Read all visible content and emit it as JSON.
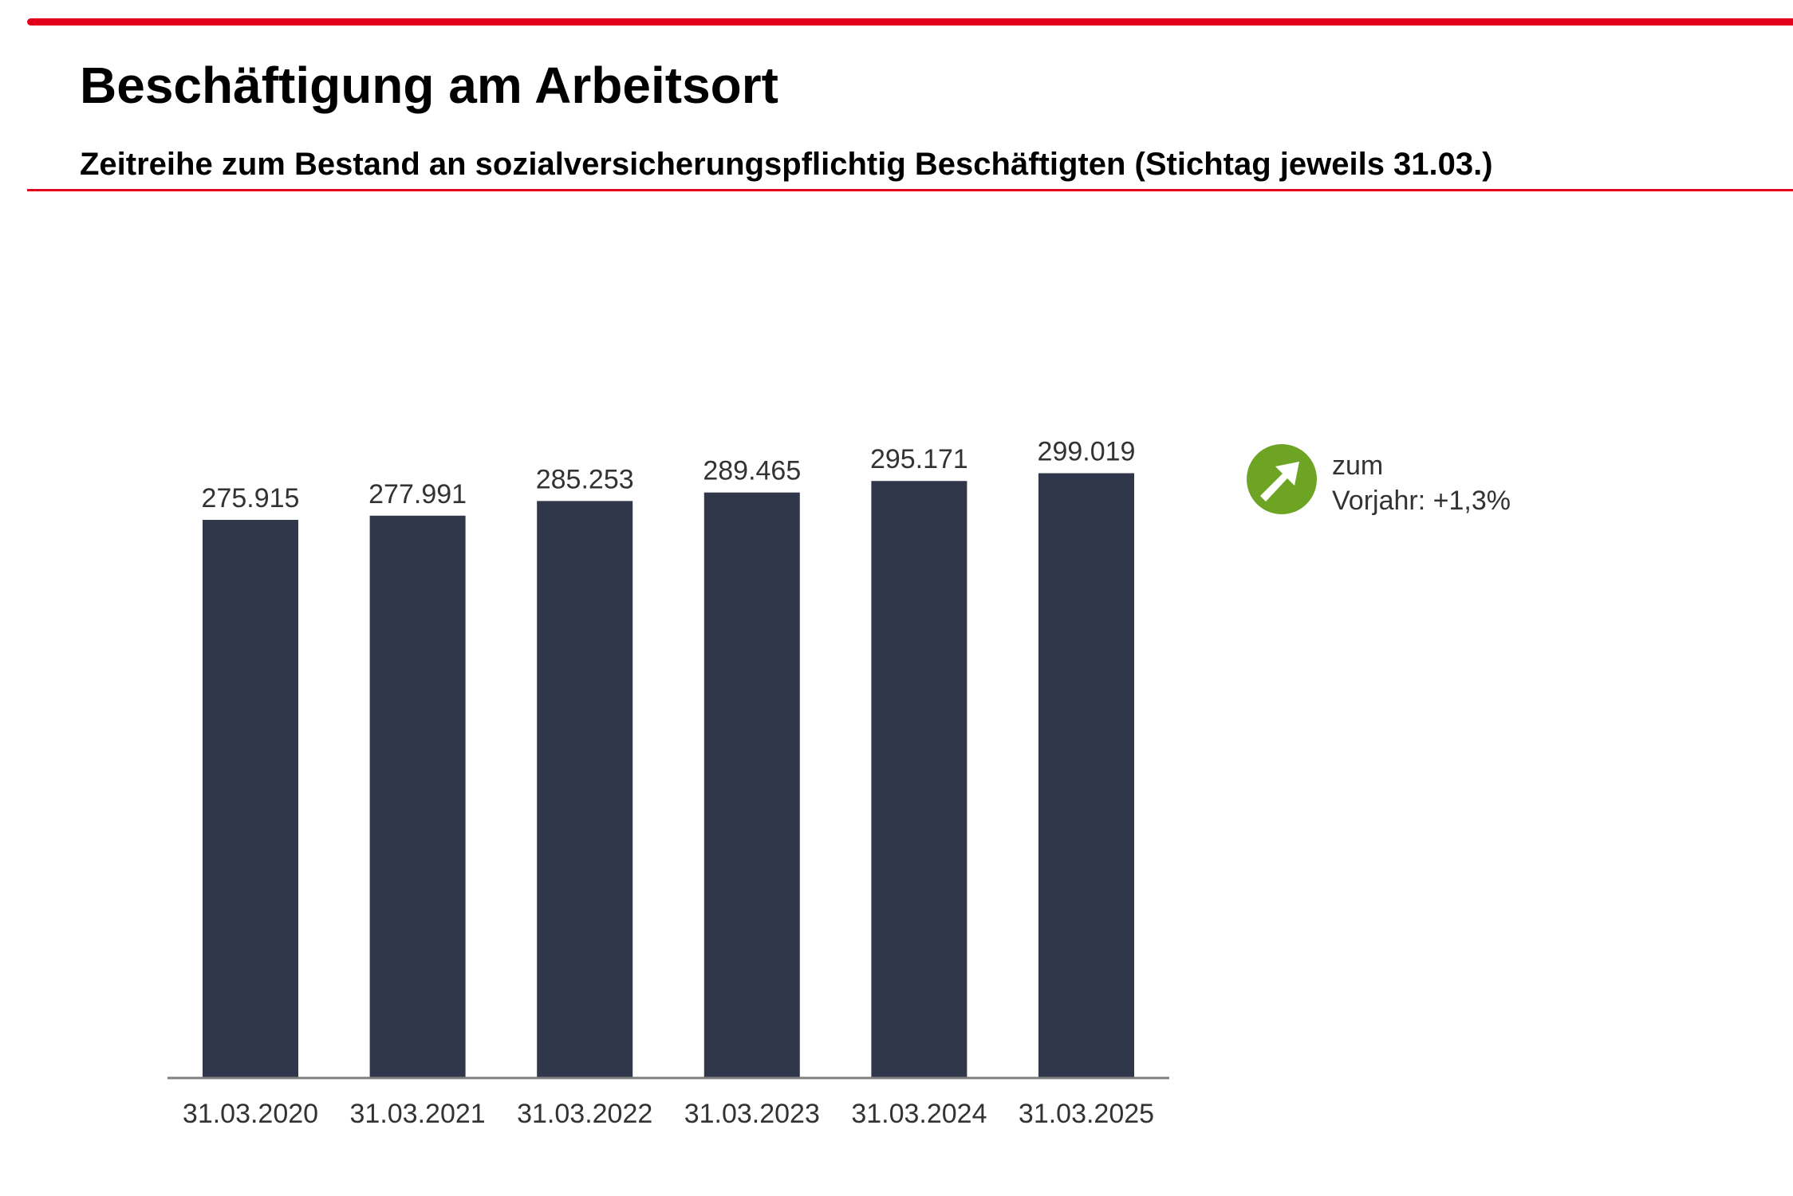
{
  "header": {
    "title": "Beschäftigung am Arbeitsort",
    "subtitle": "Zeitreihe zum Bestand an sozialversicherungspflichtig Beschäftigten (Stichtag jeweils 31.03.)"
  },
  "colors": {
    "accent": "#e3001b",
    "bar": "#30374b",
    "trend_icon": "#6ea424",
    "text": "#333333"
  },
  "trend": {
    "icon": "arrow-up-right-icon",
    "line1": "zum",
    "label": "Vorjahr:",
    "value": "+1,3%"
  },
  "chart_data": {
    "type": "bar",
    "categories": [
      "31.03.2020",
      "31.03.2021",
      "31.03.2022",
      "31.03.2023",
      "31.03.2024",
      "31.03.2025"
    ],
    "values": [
      275915,
      277991,
      285253,
      289465,
      295171,
      299019
    ],
    "value_labels": [
      "275.915",
      "277.991",
      "285.253",
      "289.465",
      "295.171",
      "299.019"
    ],
    "title": "",
    "xlabel": "",
    "ylabel": "",
    "ylim": [
      0,
      300000
    ],
    "grid": false,
    "legend": "none"
  }
}
